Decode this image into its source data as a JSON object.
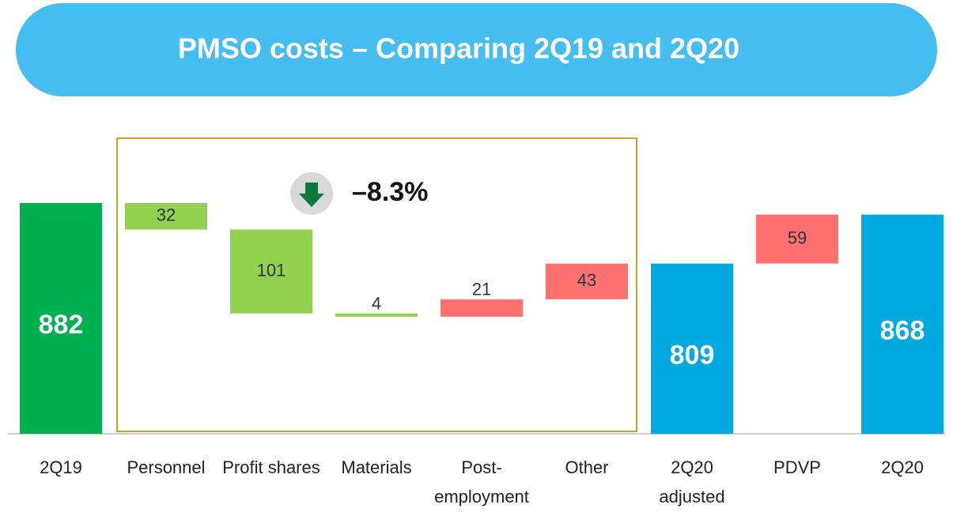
{
  "chart_data": {
    "type": "waterfall",
    "title": "PMSO costs – Comparing 2Q19 and 2Q20",
    "annotation": "–8.3%",
    "categories": [
      "2Q19",
      "Personnel",
      "Profit shares",
      "Materials",
      "Post-employment",
      "Other",
      "2Q20 adjusted",
      "PDVP",
      "2Q20"
    ],
    "values": [
      882,
      32,
      101,
      4,
      21,
      43,
      809,
      59,
      868
    ],
    "measures": [
      "total",
      "decrease",
      "decrease",
      "decrease",
      "increase",
      "increase",
      "total",
      "increase",
      "total"
    ],
    "colors": [
      "#00b050",
      "#92d050",
      "#92d050",
      "#92d050",
      "#ff7171",
      "#ff7171",
      "#00a9e0",
      "#ff7171",
      "#00a9e0"
    ],
    "ylim": [
      604,
      900
    ]
  }
}
